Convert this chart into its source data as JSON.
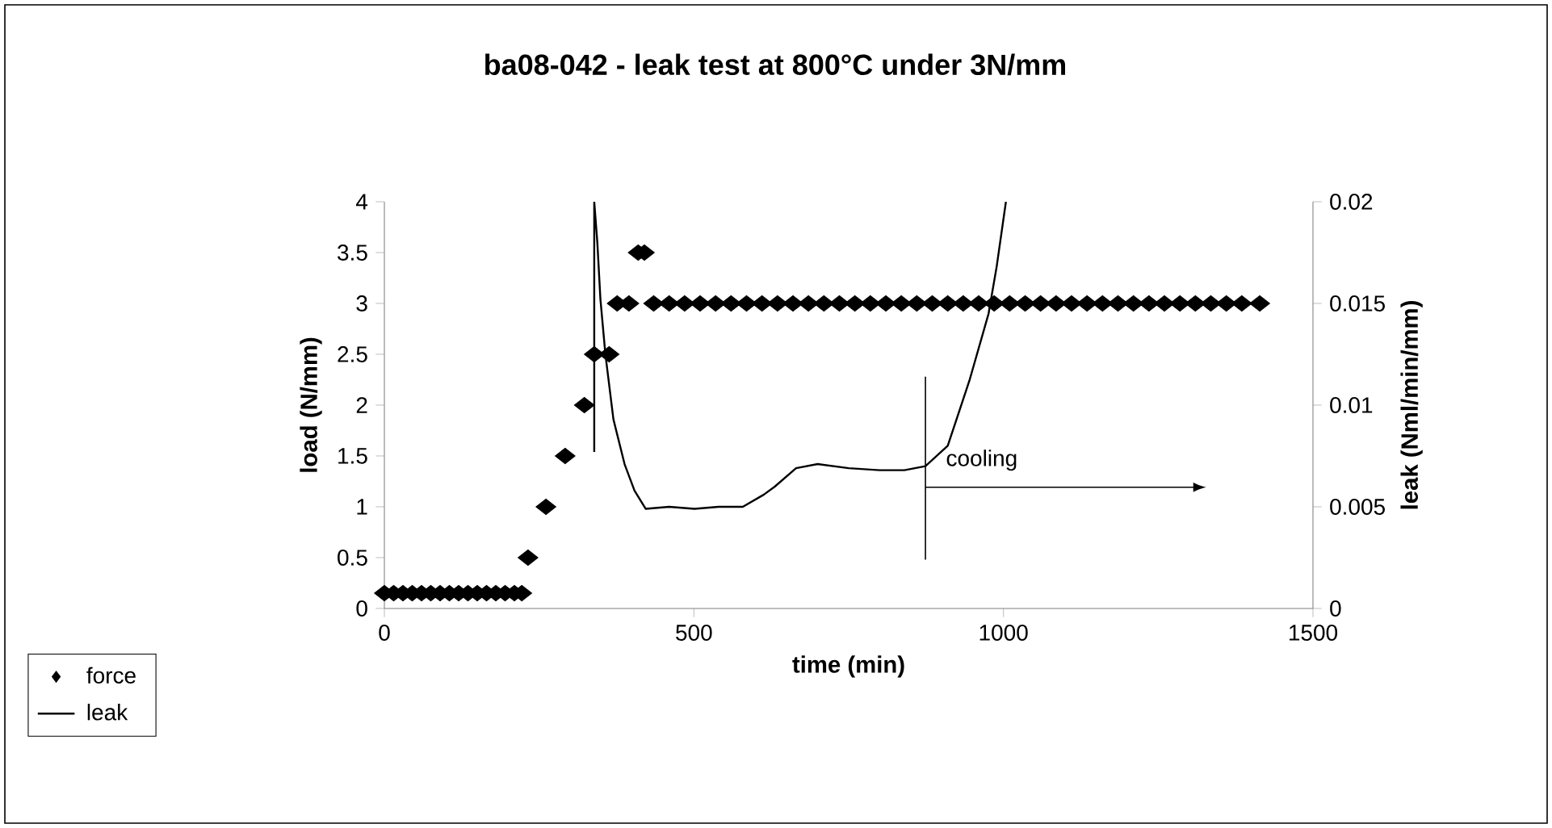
{
  "chart_data": {
    "type": "scatter",
    "title": "ba08-042 - leak test at 800°C under 3N/mm",
    "xlabel": "time (min)",
    "ylabel": "load (N/mm)",
    "y2label": "leak (Nml/min/mm)",
    "xlim": [
      0,
      1500
    ],
    "xticks": [
      0,
      500,
      1000,
      1500
    ],
    "ylim": [
      0,
      4
    ],
    "yticks": [
      0,
      0.5,
      1,
      1.5,
      2,
      2.5,
      3,
      3.5,
      4
    ],
    "y2lim": [
      0,
      0.02
    ],
    "y2ticks": [
      0,
      0.005,
      0.01,
      0.015,
      0.02
    ],
    "legend": "bottom left",
    "ref_lines": [
      {
        "axis": "x",
        "value": 874,
        "label": "cooling"
      }
    ],
    "series": [
      {
        "name": "force",
        "marker": "diamond",
        "color": "#000000",
        "x": [
          0,
          15,
          30,
          45,
          60,
          75,
          90,
          105,
          120,
          135,
          150,
          165,
          180,
          195,
          210,
          222,
          232,
          261,
          292,
          323,
          339,
          363,
          376,
          395,
          410,
          420,
          435,
          460,
          485,
          510,
          535,
          560,
          585,
          610,
          635,
          660,
          685,
          710,
          735,
          760,
          785,
          810,
          835,
          860,
          885,
          910,
          935,
          960,
          985,
          1010,
          1035,
          1060,
          1085,
          1110,
          1135,
          1160,
          1185,
          1210,
          1235,
          1260,
          1285,
          1310,
          1335,
          1360,
          1385,
          1414
        ],
        "values": [
          0.15,
          0.15,
          0.15,
          0.15,
          0.15,
          0.15,
          0.15,
          0.15,
          0.15,
          0.15,
          0.15,
          0.15,
          0.15,
          0.15,
          0.15,
          0.15,
          0.5,
          1,
          1.5,
          2,
          2.5,
          2.5,
          3,
          3,
          3.5,
          3.5,
          3,
          3,
          3,
          3,
          3,
          3,
          3,
          3,
          3,
          3,
          3,
          3,
          3,
          3,
          3,
          3,
          3,
          3,
          3,
          3,
          3,
          3,
          3,
          3,
          3,
          3,
          3,
          3,
          3,
          3,
          3,
          3,
          3,
          3,
          3,
          3,
          3,
          3,
          3,
          3
        ]
      },
      {
        "name": "leak",
        "type": "line",
        "axis": "y2",
        "line_style": "solid",
        "color": "#000000",
        "x": [
          339,
          339,
          344,
          349,
          357,
          370,
          388,
          404,
          422,
          460,
          501,
          540,
          579,
          613,
          631,
          665,
          700,
          750,
          800,
          840,
          874,
          910,
          945,
          976,
          989,
          1004
        ],
        "values": [
          0.0077,
          0.02,
          0.018,
          0.0152,
          0.0125,
          0.0093,
          0.0071,
          0.0058,
          0.0049,
          0.005,
          0.0049,
          0.005,
          0.005,
          0.0056,
          0.006,
          0.0069,
          0.0071,
          0.0069,
          0.0068,
          0.0068,
          0.007,
          0.008,
          0.0112,
          0.0145,
          0.0168,
          0.02
        ]
      }
    ]
  }
}
